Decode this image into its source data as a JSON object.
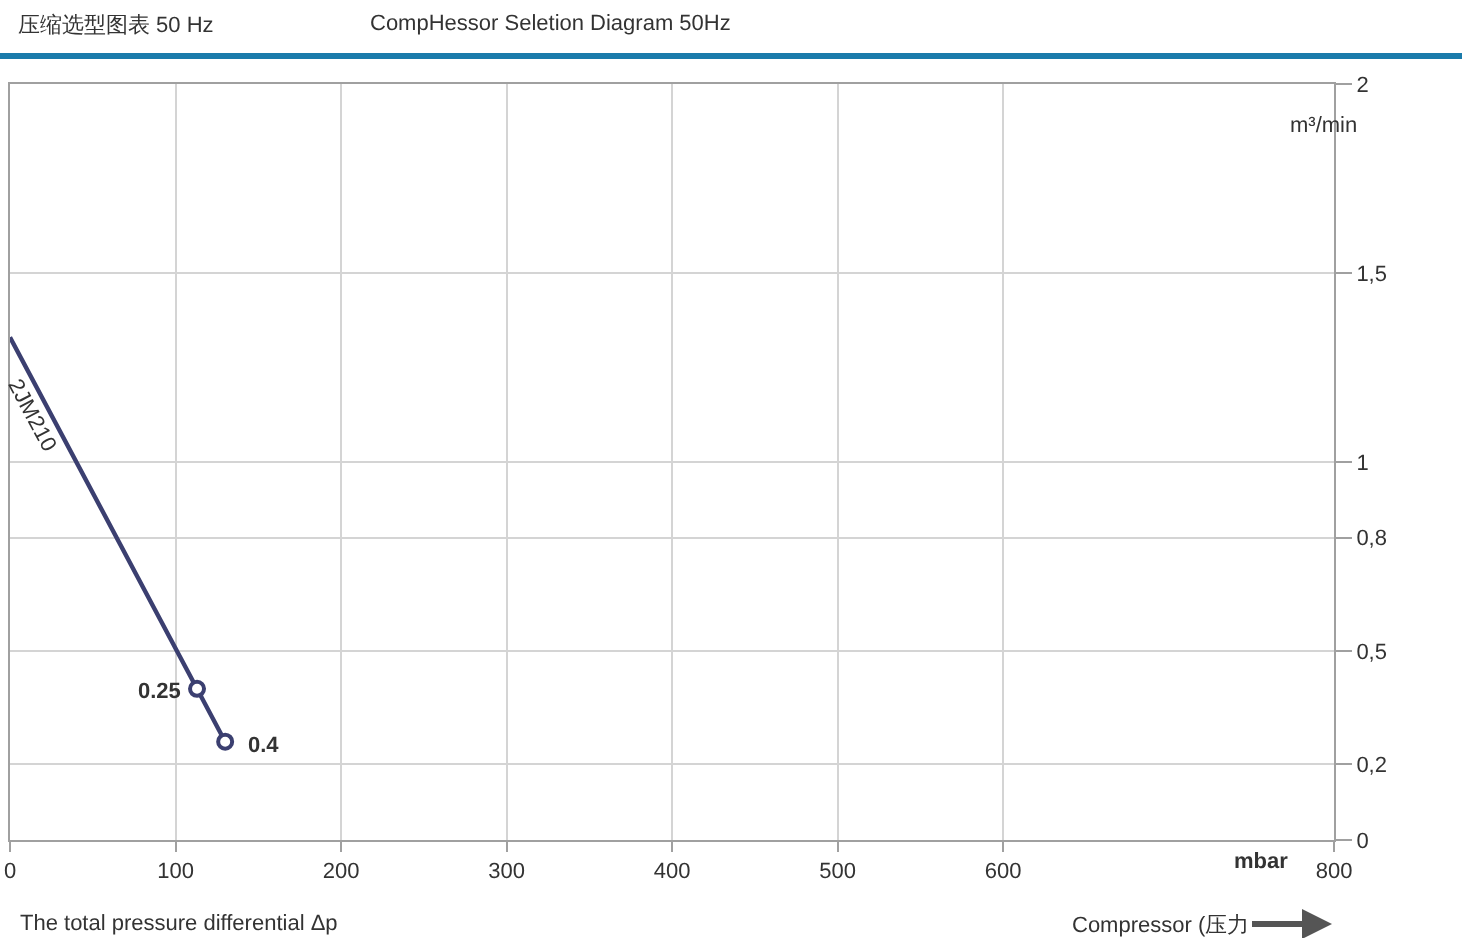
{
  "chart_data": {
    "type": "line",
    "title": "压缩选型图表 50 Hz",
    "subtitle": "CompHessor Seletion Diagram 50Hz",
    "xlabel": "mbar",
    "ylabel": "m³/min",
    "annotations": [
      "The total pressure differential Δp",
      "Compressor (压力",
      {
        "text": "0.25",
        "x": 113,
        "y": 0.4
      },
      {
        "text": "0.4",
        "x": 130,
        "y": 0.26
      }
    ],
    "x": [
      0,
      113,
      130
    ],
    "series": [
      {
        "name": "2JM210",
        "color": "#3b3f70",
        "values": [
          1.33,
          0.4,
          0.26
        ],
        "marker": "none"
      },
      {
        "type": "scatter",
        "color": "#3b3f70",
        "x": [
          113,
          130
        ],
        "values": [
          0.4,
          0.26
        ],
        "marker": "circle"
      }
    ],
    "xlim": [
      0,
      800
    ],
    "xticks": [
      0,
      100,
      200,
      300,
      400,
      500,
      600,
      800
    ],
    "ylim": [
      0,
      2
    ],
    "yticks": [
      0,
      {
        "value": 0.2,
        "label": "0,2"
      },
      {
        "value": 0.5,
        "label": "0,5"
      },
      {
        "value": 0.8,
        "label": "0,8"
      },
      1,
      {
        "value": 1.5,
        "label": "1,5"
      },
      2
    ],
    "grid": true,
    "line_style": "solid"
  }
}
